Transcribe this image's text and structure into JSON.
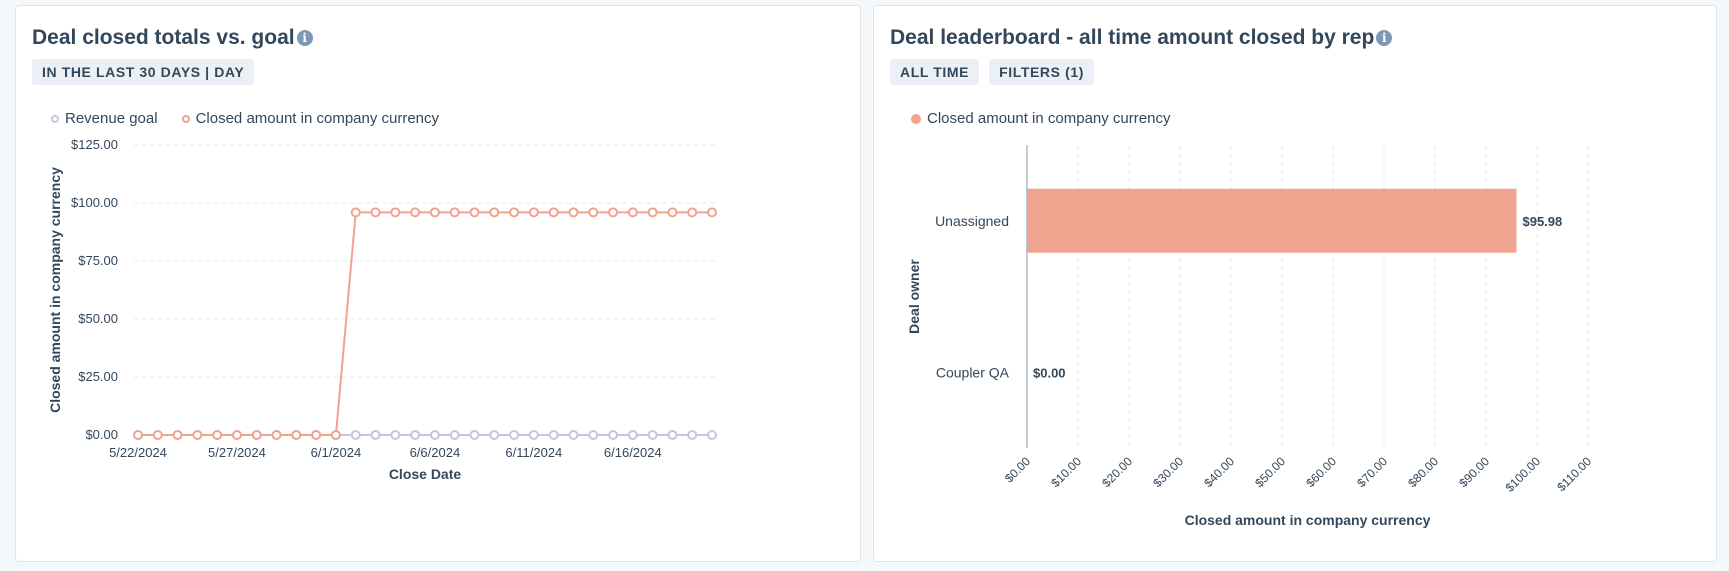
{
  "card1": {
    "title": "Deal closed totals vs. goal",
    "tags": [
      "IN THE LAST 30 DAYS | DAY"
    ],
    "legend": [
      {
        "label": "Revenue goal",
        "color": "#c0c9d9"
      },
      {
        "label": "Closed amount in company currency",
        "color": "#f0a38e"
      }
    ]
  },
  "card2": {
    "title": "Deal leaderboard - all time amount closed by rep",
    "tags": [
      "ALL TIME",
      "FILTERS (1)"
    ],
    "legend": [
      {
        "label": "Closed amount in company currency",
        "color": "#f0a38e"
      }
    ]
  },
  "chart_data": [
    {
      "type": "line",
      "title": "Deal closed totals vs. goal",
      "xlabel": "Close Date",
      "ylabel": "Closed amount in company currency",
      "ylim": [
        0,
        125
      ],
      "y_ticks": [
        "$0.00",
        "$25.00",
        "$50.00",
        "$75.00",
        "$100.00",
        "$125.00"
      ],
      "y_tick_values": [
        0,
        25,
        50,
        75,
        100,
        125
      ],
      "x_tick_labels": [
        "5/22/2024",
        "5/27/2024",
        "6/1/2024",
        "6/6/2024",
        "6/11/2024",
        "6/16/2024"
      ],
      "x_tick_indices": [
        0,
        5,
        10,
        15,
        20,
        25
      ],
      "x": [
        "5/22/2024",
        "5/23/2024",
        "5/24/2024",
        "5/25/2024",
        "5/26/2024",
        "5/27/2024",
        "5/28/2024",
        "5/29/2024",
        "5/30/2024",
        "5/31/2024",
        "6/1/2024",
        "6/2/2024",
        "6/3/2024",
        "6/4/2024",
        "6/5/2024",
        "6/6/2024",
        "6/7/2024",
        "6/8/2024",
        "6/9/2024",
        "6/10/2024",
        "6/11/2024",
        "6/12/2024",
        "6/13/2024",
        "6/14/2024",
        "6/15/2024",
        "6/16/2024",
        "6/17/2024",
        "6/18/2024",
        "6/19/2024",
        "6/20/2024"
      ],
      "series": [
        {
          "name": "Revenue goal",
          "color": "#c0c9d9",
          "values": [
            0,
            0,
            0,
            0,
            0,
            0,
            0,
            0,
            0,
            0,
            0,
            0,
            0,
            0,
            0,
            0,
            0,
            0,
            0,
            0,
            0,
            0,
            0,
            0,
            0,
            0,
            0,
            0,
            0,
            0
          ]
        },
        {
          "name": "Closed amount in company currency",
          "color": "#f0a38e",
          "values": [
            0,
            0,
            0,
            0,
            0,
            0,
            0,
            0,
            0,
            0,
            0,
            95.98,
            95.98,
            95.98,
            95.98,
            95.98,
            95.98,
            95.98,
            95.98,
            95.98,
            95.98,
            95.98,
            95.98,
            95.98,
            95.98,
            95.98,
            95.98,
            95.98,
            95.98,
            95.98
          ]
        }
      ],
      "grid": true,
      "legend": "top-left"
    },
    {
      "type": "bar",
      "orientation": "horizontal",
      "title": "Deal leaderboard - all time amount closed by rep",
      "xlabel": "Closed amount in company currency",
      "ylabel": "Deal owner",
      "categories": [
        "Unassigned",
        "Coupler QA"
      ],
      "values": [
        95.98,
        0
      ],
      "value_labels": [
        "$95.98",
        "$0.00"
      ],
      "bar_color": "#f0a38e",
      "xlim": [
        0,
        110
      ],
      "x_ticks": [
        "$0.00",
        "$10.00",
        "$20.00",
        "$30.00",
        "$40.00",
        "$50.00",
        "$60.00",
        "$70.00",
        "$80.00",
        "$90.00",
        "$100.00",
        "$110.00"
      ],
      "x_tick_values": [
        0,
        10,
        20,
        30,
        40,
        50,
        60,
        70,
        80,
        90,
        100,
        110
      ],
      "grid": true,
      "legend": "top-left"
    }
  ]
}
